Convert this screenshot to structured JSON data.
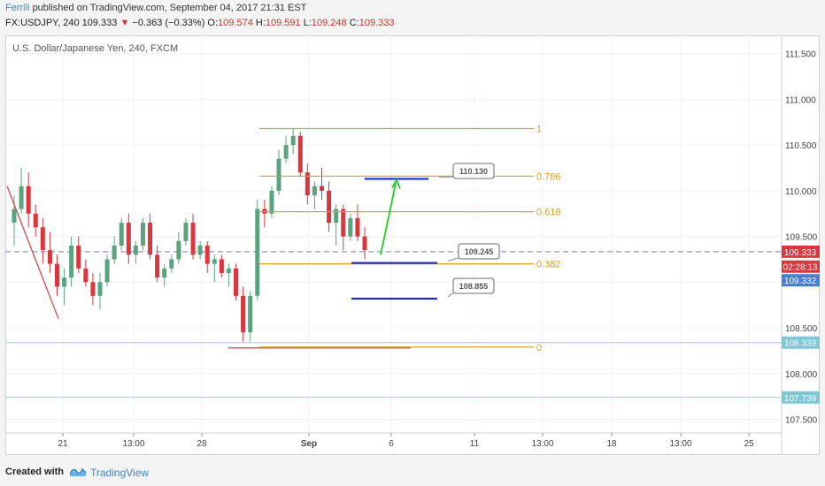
{
  "header": {
    "author": "Ferrili",
    "published": "published on TradingView.com, September 04, 2017 21:31 EST",
    "symbol": "FX:USDJPY, 240",
    "last": "109.333",
    "change": "−0.363 (−0.33%)",
    "ohlc": [
      {
        "label": "O:",
        "value": "109.574"
      },
      {
        "label": "H:",
        "value": "109.591"
      },
      {
        "label": "L:",
        "value": "109.248"
      },
      {
        "label": "C:",
        "value": "109.333"
      }
    ]
  },
  "footer": {
    "created_with": "Created with",
    "brand": "TradingView"
  },
  "colors": {
    "up": "#5aa37e",
    "down": "#d9363e",
    "fib": "#d7a028",
    "fib_zero": "#cc3b3b",
    "target": "#1a2ad4",
    "arrow": "#22cc22",
    "dashed": "#9a97c8",
    "support": "#8fd3e0"
  },
  "chart_data": {
    "type": "candlestick",
    "title": "U.S. Dollar/Japanese Yen, 240, FXCM",
    "x_ticks": [
      "21",
      "13:00",
      "28",
      "Sep",
      "6",
      "11",
      "13:00",
      "18",
      "13:00",
      "25"
    ],
    "y_ticks": [
      "111.500",
      "111.000",
      "110.500",
      "110.000",
      "109.500",
      "109.000",
      "108.500",
      "108.000",
      "107.500"
    ],
    "ylim": [
      107.35,
      111.7
    ],
    "candles": [
      [
        109.65,
        109.95,
        109.4,
        109.8
      ],
      [
        109.8,
        110.25,
        109.75,
        110.05
      ],
      [
        110.05,
        110.2,
        109.6,
        109.75
      ],
      [
        109.75,
        109.85,
        109.5,
        109.6
      ],
      [
        109.6,
        109.7,
        109.2,
        109.35
      ],
      [
        109.35,
        109.55,
        109.1,
        109.2
      ],
      [
        109.2,
        109.3,
        108.85,
        108.95
      ],
      [
        108.95,
        109.15,
        108.75,
        109.05
      ],
      [
        109.05,
        109.5,
        108.95,
        109.4
      ],
      [
        109.4,
        109.5,
        109.1,
        109.15
      ],
      [
        109.15,
        109.25,
        108.95,
        109.0
      ],
      [
        109.0,
        109.1,
        108.75,
        108.85
      ],
      [
        108.85,
        109.1,
        108.7,
        109.0
      ],
      [
        109.0,
        109.3,
        108.95,
        109.25
      ],
      [
        109.25,
        109.5,
        109.2,
        109.4
      ],
      [
        109.4,
        109.7,
        109.35,
        109.65
      ],
      [
        109.65,
        109.75,
        109.2,
        109.3
      ],
      [
        109.3,
        109.45,
        109.2,
        109.4
      ],
      [
        109.4,
        109.7,
        109.35,
        109.65
      ],
      [
        109.65,
        109.75,
        109.25,
        109.3
      ],
      [
        109.3,
        109.4,
        109.0,
        109.05
      ],
      [
        109.05,
        109.2,
        108.95,
        109.15
      ],
      [
        109.15,
        109.3,
        109.1,
        109.25
      ],
      [
        109.25,
        109.55,
        109.2,
        109.45
      ],
      [
        109.45,
        109.7,
        109.4,
        109.65
      ],
      [
        109.65,
        109.75,
        109.25,
        109.3
      ],
      [
        109.3,
        109.45,
        109.25,
        109.4
      ],
      [
        109.4,
        109.45,
        109.1,
        109.2
      ],
      [
        109.2,
        109.3,
        109.0,
        109.25
      ],
      [
        109.25,
        109.3,
        109.05,
        109.1
      ],
      [
        109.1,
        109.2,
        108.95,
        109.15
      ],
      [
        109.15,
        109.2,
        108.8,
        108.85
      ],
      [
        108.85,
        108.95,
        108.35,
        108.45
      ],
      [
        108.45,
        108.9,
        108.35,
        108.85
      ],
      [
        108.85,
        109.9,
        108.8,
        109.8
      ],
      [
        109.8,
        109.9,
        109.6,
        109.75
      ],
      [
        109.75,
        110.05,
        109.7,
        110.0
      ],
      [
        110.0,
        110.45,
        109.95,
        110.35
      ],
      [
        110.35,
        110.6,
        110.3,
        110.5
      ],
      [
        110.5,
        110.68,
        110.4,
        110.6
      ],
      [
        110.6,
        110.65,
        110.15,
        110.2
      ],
      [
        110.2,
        110.3,
        109.85,
        109.95
      ],
      [
        109.95,
        110.1,
        109.8,
        110.05
      ],
      [
        110.05,
        110.25,
        109.9,
        110.0
      ],
      [
        110.0,
        110.1,
        109.55,
        109.65
      ],
      [
        109.65,
        109.85,
        109.4,
        109.8
      ],
      [
        109.8,
        109.85,
        109.35,
        109.5
      ],
      [
        109.5,
        109.75,
        109.45,
        109.7
      ],
      [
        109.7,
        109.85,
        109.45,
        109.5
      ],
      [
        109.5,
        109.6,
        109.25,
        109.35
      ]
    ],
    "fibonacci": [
      {
        "level": "1",
        "price": 110.68
      },
      {
        "level": "0.786",
        "price": 110.16
      },
      {
        "level": "0.618",
        "price": 109.77
      },
      {
        "level": "0.382",
        "price": 109.2
      },
      {
        "level": "0",
        "price": 108.29
      }
    ],
    "price_labels": [
      {
        "text": "109.333",
        "price": 109.333,
        "color": "#d9363e"
      },
      {
        "text": "02:28:13",
        "price": 109.17,
        "color": "#d9363e"
      },
      {
        "text": "109.332",
        "price": 109.02,
        "color": "#4a7dd6"
      },
      {
        "text": "108.339",
        "price": 108.339,
        "color": "#7fc6d6"
      },
      {
        "text": "107.739",
        "price": 107.739,
        "color": "#7fc6d6"
      }
    ],
    "targets": [
      {
        "label": "110.130",
        "price": 110.13
      },
      {
        "label": "109.245",
        "price": 109.21
      },
      {
        "label": "108.855",
        "price": 108.82
      }
    ],
    "horizontal_lines": [
      108.339,
      107.739
    ],
    "dashed_price": 109.333
  }
}
